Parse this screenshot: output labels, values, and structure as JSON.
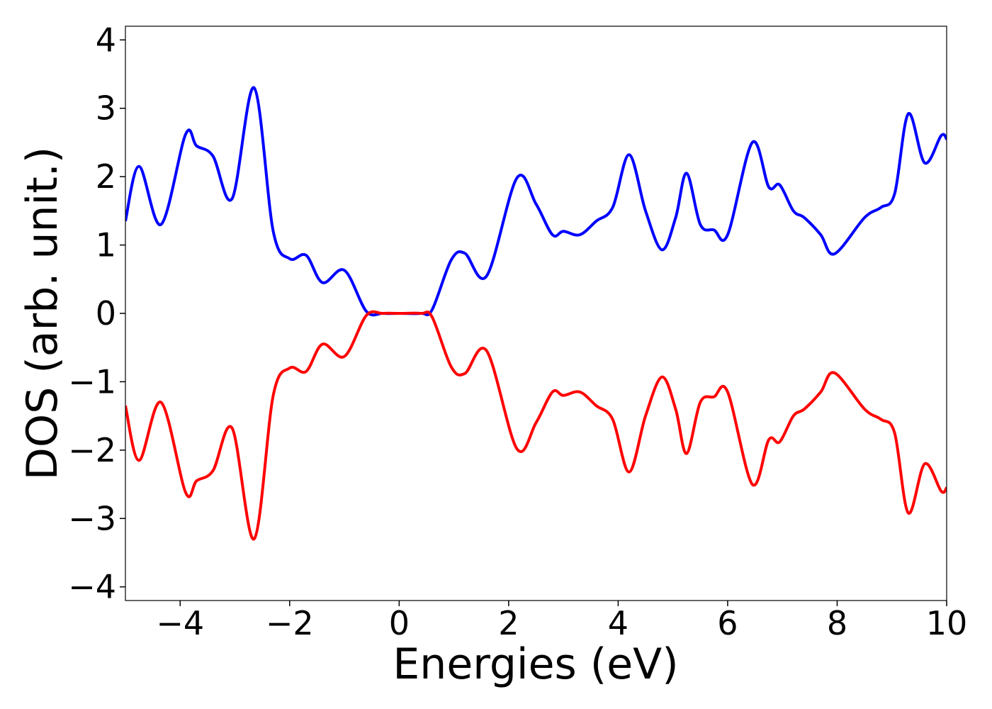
{
  "chart_data": {
    "type": "line",
    "xlabel": "Energies (eV)",
    "ylabel": "DOS (arb. unit.)",
    "x": [
      -5,
      -4.75,
      -4.35,
      -3.9,
      -3.7,
      -3.4,
      -3.05,
      -2.65,
      -2.3,
      -2.0,
      -1.7,
      -1.4,
      -1.0,
      -0.6,
      -0.3,
      0,
      0.4,
      0.6,
      0.95,
      1.2,
      1.6,
      2.15,
      2.5,
      2.8,
      3.0,
      3.3,
      3.6,
      3.9,
      4.2,
      4.5,
      4.8,
      5.05,
      5.25,
      5.5,
      5.75,
      6.0,
      6.45,
      6.75,
      6.95,
      7.2,
      7.4,
      7.7,
      7.95,
      8.5,
      8.8,
      9.05,
      9.3,
      9.6,
      9.9,
      10
    ],
    "series": [
      {
        "color": "#0000ff",
        "values": [
          1.35,
          2.15,
          1.3,
          2.62,
          2.45,
          2.3,
          1.68,
          3.3,
          1.2,
          0.8,
          0.85,
          0.45,
          0.63,
          0.03,
          0,
          0,
          0,
          0.05,
          0.78,
          0.88,
          0.55,
          1.98,
          1.6,
          1.15,
          1.2,
          1.15,
          1.35,
          1.55,
          2.32,
          1.5,
          0.93,
          1.4,
          2.05,
          1.3,
          1.22,
          1.15,
          2.5,
          1.85,
          1.88,
          1.5,
          1.4,
          1.15,
          0.87,
          1.4,
          1.55,
          1.75,
          2.92,
          2.2,
          2.6,
          2.55
        ]
      },
      {
        "color": "#ff0000",
        "values": [
          -1.35,
          -2.15,
          -1.3,
          -2.62,
          -2.45,
          -2.3,
          -1.68,
          -3.3,
          -1.2,
          -0.8,
          -0.85,
          -0.45,
          -0.63,
          -0.03,
          0,
          0,
          0,
          -0.05,
          -0.78,
          -0.88,
          -0.55,
          -1.98,
          -1.6,
          -1.15,
          -1.2,
          -1.15,
          -1.35,
          -1.55,
          -2.32,
          -1.5,
          -0.93,
          -1.4,
          -2.05,
          -1.3,
          -1.22,
          -1.15,
          -2.5,
          -1.85,
          -1.88,
          -1.5,
          -1.4,
          -1.15,
          -0.87,
          -1.4,
          -1.55,
          -1.75,
          -2.92,
          -2.2,
          -2.6,
          -2.55
        ]
      }
    ],
    "xlim": [
      -5,
      10
    ],
    "xticks": [
      {
        "value": -4,
        "label": "−4"
      },
      {
        "value": -2,
        "label": "−2"
      },
      0,
      2,
      4,
      6,
      8,
      10
    ],
    "ylim": [
      -4.2,
      4.2
    ],
    "yticks": [
      {
        "value": -4,
        "label": "−4"
      },
      {
        "value": -3,
        "label": "−3"
      },
      {
        "value": -2,
        "label": "−2"
      },
      {
        "value": -1,
        "label": "−1"
      },
      0,
      1,
      2,
      3,
      4
    ],
    "grid": false
  }
}
